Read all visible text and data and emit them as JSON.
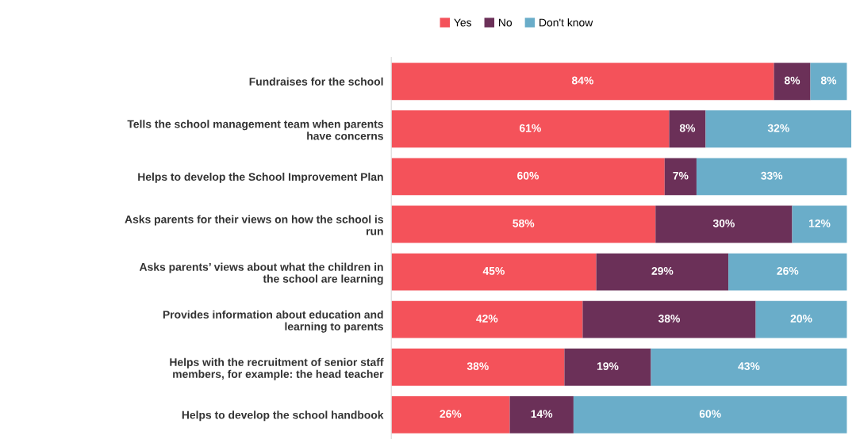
{
  "chart_data": {
    "type": "bar",
    "orientation": "horizontal",
    "stacked": true,
    "legend": "top",
    "grid": false,
    "categories": [
      "Fundraises for the school",
      "Tells the school management team when parents\nhave concerns",
      "Helps to develop the School Improvement Plan",
      "Asks parents for their views on how the school is\nrun",
      "Asks parents’ views about what the children in\nthe school are learning",
      "Provides information about education and\nlearning to parents",
      "Helps with the recruitment of senior staff\nmembers, for example: the head teacher",
      "Helps to develop the school handbook"
    ],
    "series": [
      {
        "name": "Yes",
        "color": "#f4525a",
        "values": [
          84,
          61,
          60,
          58,
          45,
          42,
          38,
          26
        ],
        "value_labels": [
          "84%",
          "61%",
          "60%",
          "58%",
          "45%",
          "42%",
          "38%",
          "26%"
        ]
      },
      {
        "name": "No",
        "color": "#6b3058",
        "values": [
          8,
          8,
          7,
          30,
          29,
          38,
          19,
          14
        ],
        "value_labels": [
          "8%",
          "8%",
          "7%",
          "30%",
          "29%",
          "38%",
          "19%",
          "14%"
        ]
      },
      {
        "name": "Don't know",
        "color": "#6aadc9",
        "values": [
          8,
          32,
          33,
          12,
          26,
          20,
          43,
          60
        ],
        "value_labels": [
          "8%",
          "32%",
          "33%",
          "12%",
          "26%",
          "20%",
          "43%",
          "60%"
        ]
      }
    ]
  }
}
